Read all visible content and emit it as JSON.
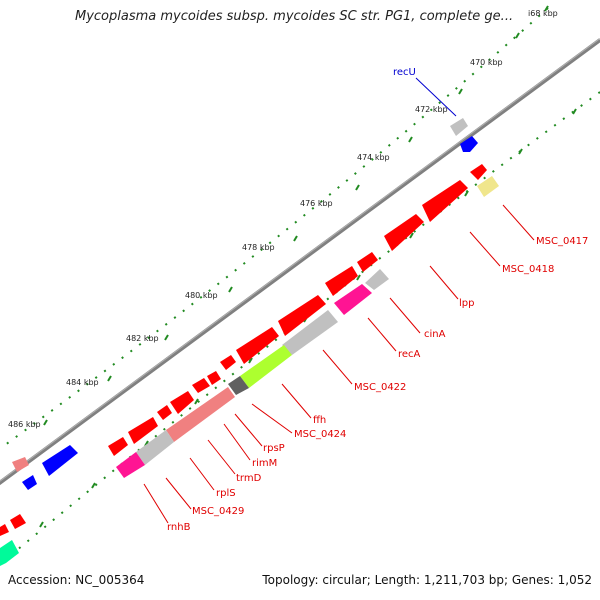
{
  "title": "Mycoplasma mycoides subsp. mycoides SC str. PG1, complete ge...",
  "footer": {
    "accession": "Accession: NC_005364",
    "summary": "Topology: circular; Length: 1,211,703 bp; Genes: 1,052"
  },
  "ruler_labels": [
    "i68 kbp",
    "470 kbp",
    "472 kbp",
    "474 kbp",
    "476 kbp",
    "478 kbp",
    "480 kbp",
    "482 kbp",
    "484 kbp",
    "486 kbp"
  ],
  "gene_labels": [
    {
      "id": "recU",
      "text": "recU",
      "color": "blue"
    },
    {
      "id": "MSC_0417",
      "text": "MSC_0417",
      "color": "red"
    },
    {
      "id": "MSC_0418",
      "text": "MSC_0418",
      "color": "red"
    },
    {
      "id": "lpp",
      "text": "lpp",
      "color": "red"
    },
    {
      "id": "cinA",
      "text": "cinA",
      "color": "red"
    },
    {
      "id": "recA",
      "text": "recA",
      "color": "red"
    },
    {
      "id": "MSC_0422",
      "text": "MSC_0422",
      "color": "red"
    },
    {
      "id": "ffh",
      "text": "ffh",
      "color": "red"
    },
    {
      "id": "MSC_0424",
      "text": "MSC_0424",
      "color": "red"
    },
    {
      "id": "rpsP",
      "text": "rpsP",
      "color": "red"
    },
    {
      "id": "rimM",
      "text": "rimM",
      "color": "red"
    },
    {
      "id": "trmD",
      "text": "trmD",
      "color": "red"
    },
    {
      "id": "rplS",
      "text": "rplS",
      "color": "red"
    },
    {
      "id": "MSC_0429",
      "text": "MSC_0429",
      "color": "red"
    },
    {
      "id": "rnhB",
      "text": "rnhB",
      "color": "red"
    }
  ],
  "colors": {
    "backbone": "#808080",
    "gene_red": "#ff0000",
    "gene_blue": "#0000ff",
    "gene_magenta": "#ff1493",
    "gene_lime": "#adff2f",
    "gene_grey": "#c0c0c0",
    "gene_pink": "#f08080",
    "gene_dark": "#606060",
    "gene_yellow": "#f0e68c",
    "gene_green": "#00fa9a",
    "tick": "#228b22"
  }
}
